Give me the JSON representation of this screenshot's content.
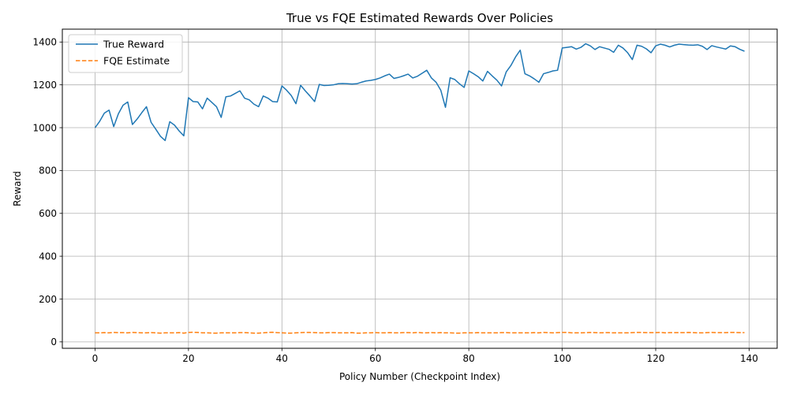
{
  "chart_data": {
    "type": "line",
    "title": "True vs FQE Estimated Rewards Over Policies",
    "xlabel": "Policy Number (Checkpoint Index)",
    "ylabel": "Reward",
    "xlim": [
      -7,
      146
    ],
    "ylim": [
      -30,
      1460
    ],
    "xticks": [
      0,
      20,
      40,
      60,
      80,
      100,
      120,
      140
    ],
    "yticks": [
      0,
      200,
      400,
      600,
      800,
      1000,
      1200,
      1400
    ],
    "grid": true,
    "legend": "top-left",
    "series": [
      {
        "name": "True Reward",
        "color": "#1f77b4",
        "style": "solid",
        "values": [
          1000,
          1030,
          1068,
          1082,
          1005,
          1065,
          1105,
          1120,
          1015,
          1040,
          1070,
          1098,
          1025,
          993,
          960,
          940,
          1028,
          1012,
          985,
          962,
          1140,
          1122,
          1120,
          1088,
          1138,
          1118,
          1098,
          1048,
          1144,
          1148,
          1160,
          1172,
          1138,
          1130,
          1110,
          1098,
          1148,
          1138,
          1122,
          1120,
          1195,
          1175,
          1150,
          1112,
          1198,
          1172,
          1148,
          1122,
          1202,
          1197,
          1198,
          1200,
          1205,
          1206,
          1205,
          1204,
          1205,
          1212,
          1218,
          1221,
          1225,
          1232,
          1242,
          1250,
          1230,
          1235,
          1242,
          1250,
          1232,
          1240,
          1254,
          1268,
          1232,
          1212,
          1175,
          1095,
          1233,
          1225,
          1205,
          1188,
          1265,
          1252,
          1238,
          1218,
          1263,
          1242,
          1222,
          1195,
          1260,
          1290,
          1330,
          1362,
          1252,
          1242,
          1228,
          1212,
          1252,
          1258,
          1265,
          1268,
          1372,
          1375,
          1378,
          1367,
          1375,
          1392,
          1382,
          1365,
          1378,
          1372,
          1366,
          1352,
          1385,
          1372,
          1350,
          1318,
          1385,
          1380,
          1368,
          1350,
          1382,
          1390,
          1385,
          1377,
          1385,
          1390,
          1388,
          1386,
          1385,
          1387,
          1380,
          1365,
          1383,
          1377,
          1372,
          1367,
          1382,
          1378,
          1366,
          1357
        ]
      },
      {
        "name": "FQE Estimate",
        "color": "#ff7f0e",
        "style": "dashed",
        "values": [
          42,
          42,
          43,
          42,
          44,
          43,
          43,
          42,
          44,
          43,
          42,
          42,
          43,
          42,
          41,
          42,
          42,
          42,
          43,
          41,
          44,
          45,
          44,
          42,
          42,
          41,
          41,
          42,
          42,
          42,
          42,
          43,
          43,
          42,
          41,
          41,
          42,
          44,
          45,
          43,
          42,
          41,
          41,
          42,
          43,
          44,
          44,
          43,
          42,
          42,
          43,
          43,
          42,
          42,
          42,
          43,
          41,
          41,
          42,
          42,
          43,
          42,
          42,
          43,
          42,
          42,
          43,
          43,
          42,
          44,
          42,
          42,
          43,
          42,
          43,
          42,
          42,
          41,
          41,
          42,
          42,
          42,
          43,
          42,
          42,
          42,
          42,
          43,
          43,
          42,
          42,
          42,
          42,
          42,
          43,
          42,
          44,
          43,
          42,
          43,
          44,
          44,
          42,
          42,
          42,
          43,
          44,
          43,
          42,
          43,
          43,
          42,
          42,
          42,
          42,
          43,
          44,
          44,
          43,
          43,
          43,
          44,
          42,
          43,
          43,
          43,
          43,
          44,
          43,
          42,
          42,
          43,
          44,
          43,
          43,
          43,
          44,
          44,
          43,
          43
        ]
      }
    ]
  }
}
